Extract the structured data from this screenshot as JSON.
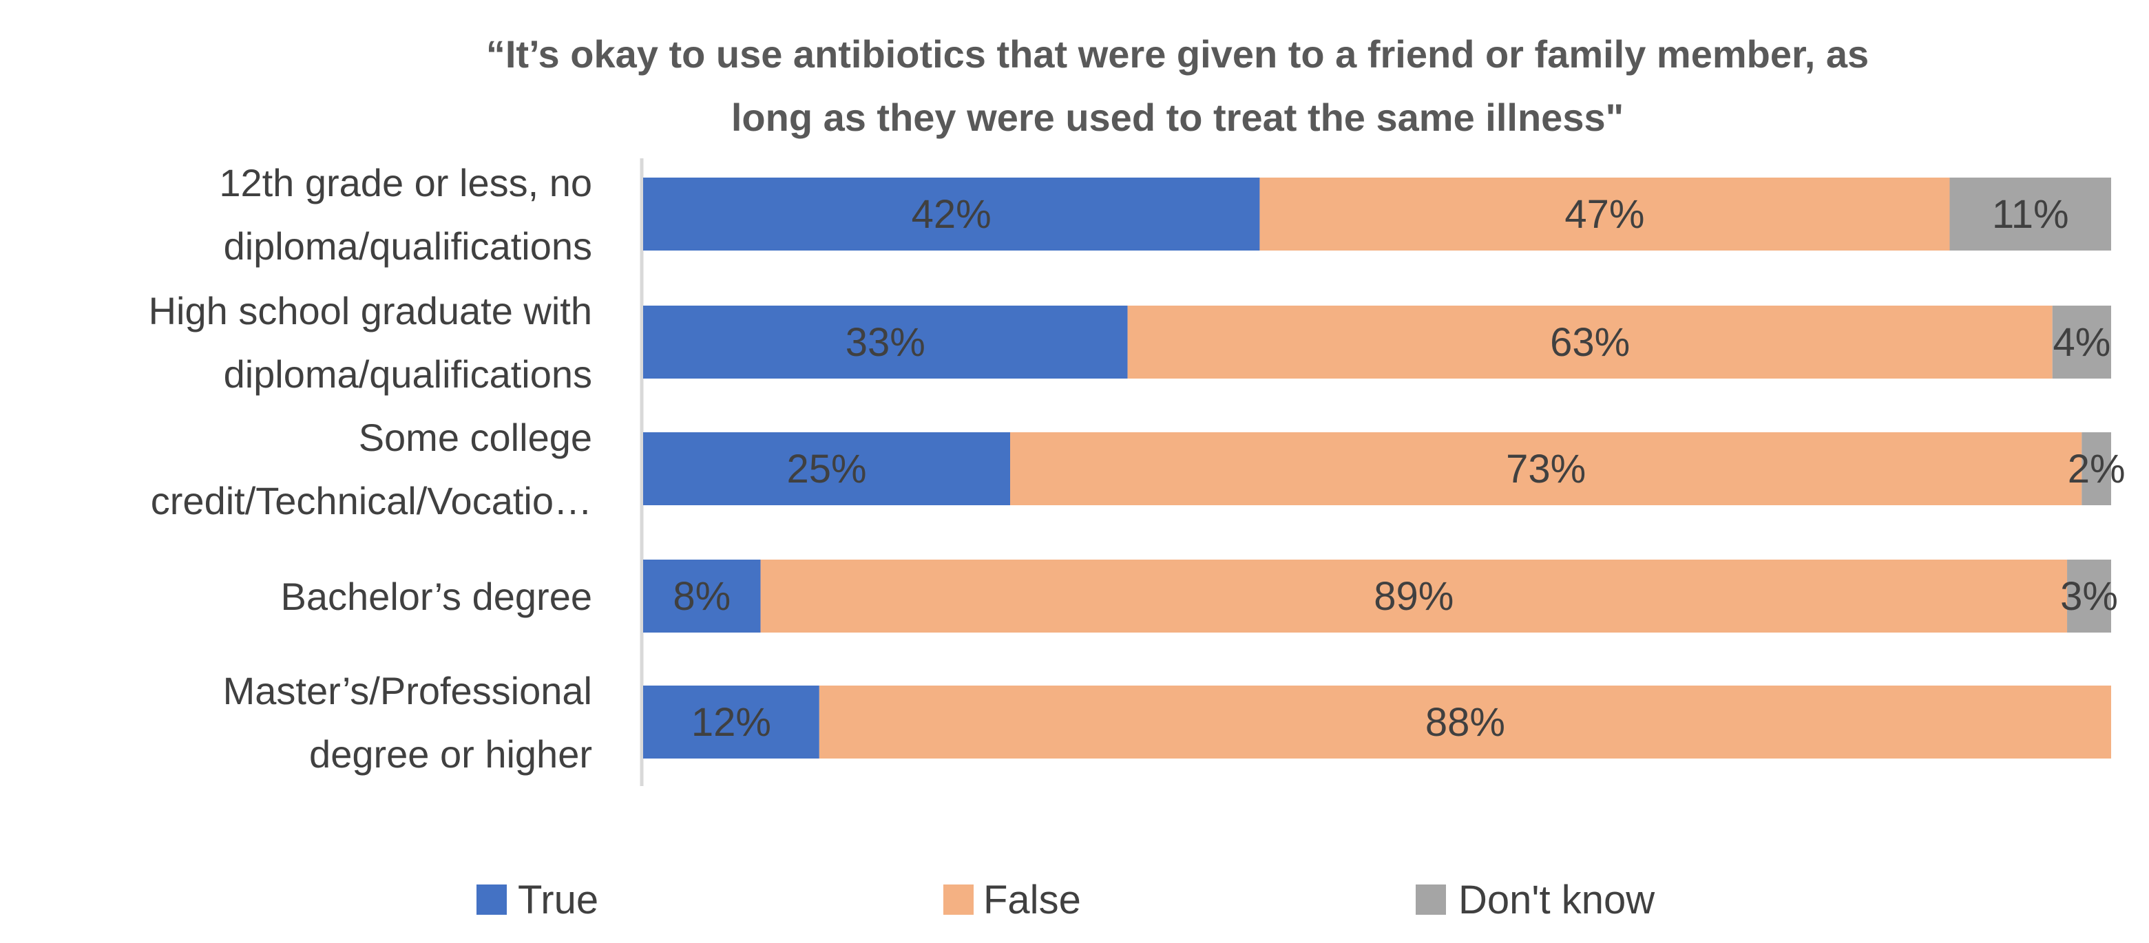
{
  "chart_data": {
    "type": "bar",
    "orientation": "horizontal",
    "stacked": "percent",
    "title": "“It’s okay to use antibiotics that were given to a friend or family member, as long as they were used to treat the same illness\"",
    "title_lines": [
      "“It’s okay to use antibiotics that were given to a friend or family member, as",
      "long as they were used to treat the same illness\""
    ],
    "categories": [
      "12th grade or less, no diploma/qualifications",
      "High school graduate with diploma/qualifications",
      "Some college credit/Technical/Vocatio…",
      "Bachelor’s degree",
      "Master’s/Professional degree or higher"
    ],
    "category_label_lines": [
      [
        "12th grade or less, no",
        "diploma/qualifications"
      ],
      [
        "High school graduate with",
        "diploma/qualifications"
      ],
      [
        "Some college",
        "credit/Technical/Vocatio…"
      ],
      [
        "Bachelor’s degree"
      ],
      [
        "Master’s/Professional",
        "degree or higher"
      ]
    ],
    "series": [
      {
        "name": "True",
        "color": "#4472C4",
        "values": [
          42,
          33,
          25,
          8,
          12
        ],
        "labels": [
          "42%",
          "33%",
          "25%",
          "8%",
          "12%"
        ]
      },
      {
        "name": "False",
        "color": "#F4B183",
        "values": [
          47,
          63,
          73,
          89,
          88
        ],
        "labels": [
          "47%",
          "63%",
          "73%",
          "89%",
          "88%"
        ]
      },
      {
        "name": "Don't know",
        "color": "#A5A5A5",
        "values": [
          11,
          4,
          2,
          3,
          0
        ],
        "labels": [
          "11%",
          "4%",
          "2%",
          "3%",
          ""
        ]
      }
    ],
    "xlim": [
      0,
      100
    ],
    "grid": false,
    "legend_position": "bottom"
  }
}
